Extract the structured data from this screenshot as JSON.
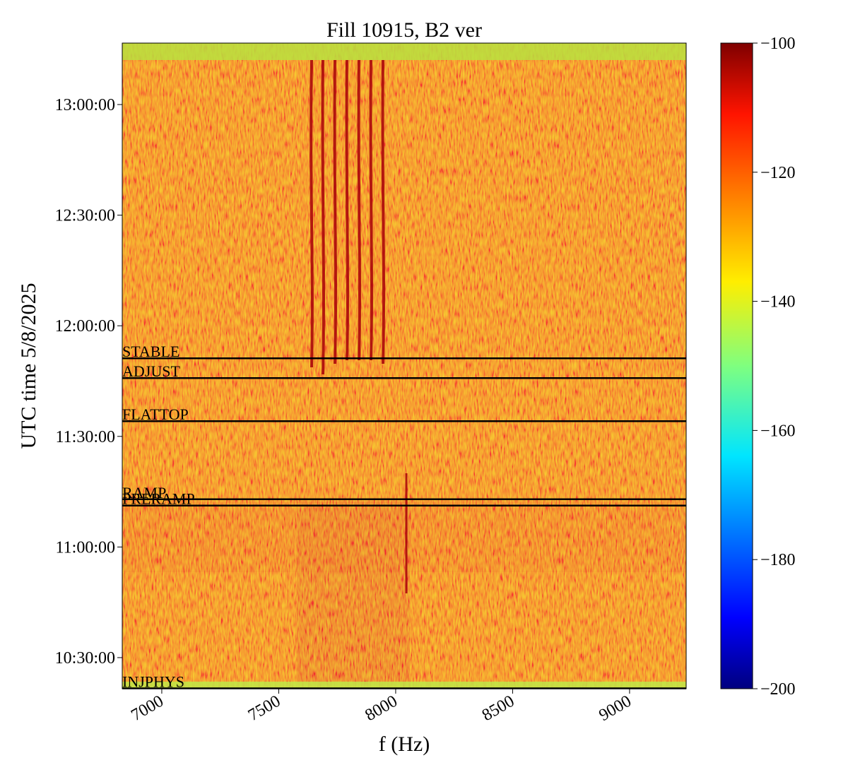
{
  "chart_data": {
    "type": "spectrogram",
    "title": "Fill 10915, B2 ver",
    "x_label": "f (Hz)",
    "y_label": "UTC time 5/8/2025",
    "colormap": "jet",
    "xlim": [
      6831,
      9242
    ],
    "xticks": [
      7000,
      7500,
      8000,
      8500,
      9000
    ],
    "ylim": [
      37294,
      47800
    ],
    "yticks": [
      {
        "value": 37800,
        "label": "10:30:00"
      },
      {
        "value": 39600,
        "label": "11:00:00"
      },
      {
        "value": 41400,
        "label": "11:30:00"
      },
      {
        "value": 43200,
        "label": "12:00:00"
      },
      {
        "value": 45000,
        "label": "12:30:00"
      },
      {
        "value": 46800,
        "label": "13:00:00"
      }
    ],
    "clim": [
      -200,
      -100
    ],
    "cticks": [
      {
        "value": -100,
        "label": "−100"
      },
      {
        "value": -120,
        "label": "−120"
      },
      {
        "value": -140,
        "label": "−140"
      },
      {
        "value": -160,
        "label": "−160"
      },
      {
        "value": -180,
        "label": "−180"
      },
      {
        "value": -200,
        "label": "−200"
      }
    ],
    "annotations": [
      {
        "label": "STABLE",
        "value": 42671
      },
      {
        "label": "ADJUST",
        "value": 42349
      },
      {
        "label": "FLATTOP",
        "value": 41648
      },
      {
        "label": "RAMP",
        "value": 40377
      },
      {
        "label": "PRERAMP",
        "value": 40274
      },
      {
        "label": "INJPHYS",
        "value": 37300
      }
    ],
    "annotation_color": "#000000"
  }
}
